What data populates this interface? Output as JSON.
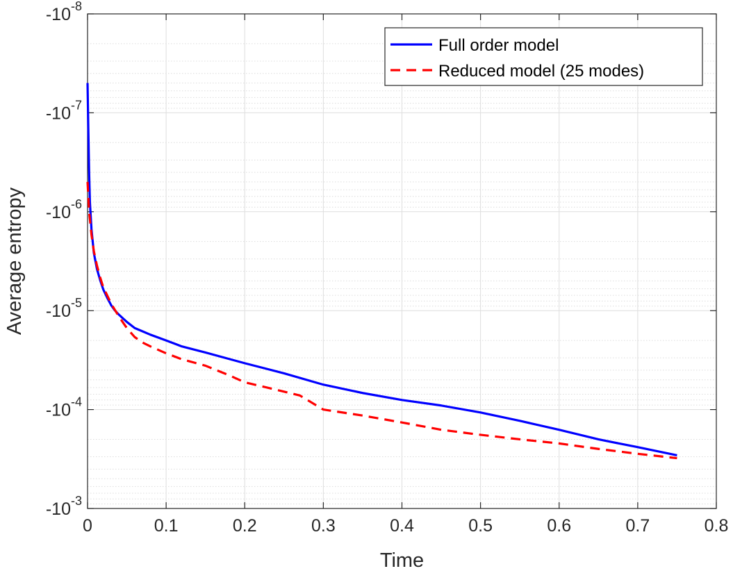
{
  "chart_data": {
    "type": "line",
    "title": "",
    "xlabel": "Time",
    "ylabel": "Average entropy",
    "xlim": [
      0,
      0.8
    ],
    "x_ticks": [
      0,
      0.1,
      0.2,
      0.3,
      0.4,
      0.5,
      0.6,
      0.7,
      0.8
    ],
    "x_tick_labels": [
      "0",
      "0.1",
      "0.2",
      "0.3",
      "0.4",
      "0.5",
      "0.6",
      "0.7",
      "0.8"
    ],
    "y_scale": "log (negated values, magnitude increasing downward)",
    "ylim": [
      -0.001,
      -1e-08
    ],
    "y_ticks": [
      -1e-08,
      -1e-07,
      -1e-06,
      -1e-05,
      -0.0001,
      -0.001
    ],
    "y_tick_labels": [
      {
        "base": "-10",
        "exp": "-8"
      },
      {
        "base": "-10",
        "exp": "-7"
      },
      {
        "base": "-10",
        "exp": "-6"
      },
      {
        "base": "-10",
        "exp": "-5"
      },
      {
        "base": "-10",
        "exp": "-4"
      },
      {
        "base": "-10",
        "exp": "-3"
      }
    ],
    "grid": true,
    "minor_grid": true,
    "legend_position": "top-right",
    "series": [
      {
        "name": "Full order model",
        "color": "#0000ff",
        "style": "solid",
        "x": [
          0,
          0.001,
          0.002,
          0.003,
          0.005,
          0.008,
          0.012,
          0.016,
          0.02,
          0.025,
          0.03,
          0.035,
          0.04,
          0.05,
          0.06,
          0.07,
          0.08,
          0.1,
          0.12,
          0.15,
          0.2,
          0.25,
          0.3,
          0.35,
          0.4,
          0.45,
          0.5,
          0.55,
          0.6,
          0.65,
          0.7,
          0.75
        ],
        "y": [
          -5e-08,
          -1.5e-07,
          -4e-07,
          -8e-07,
          -1.5e-06,
          -2.6e-06,
          -3.8e-06,
          -4.9e-06,
          -6.1e-06,
          -7.4e-06,
          -8.8e-06,
          -1e-05,
          -1.1e-05,
          -1.3e-05,
          -1.5e-05,
          -1.62e-05,
          -1.75e-05,
          -2e-05,
          -2.3e-05,
          -2.65e-05,
          -3.4e-05,
          -4.3e-05,
          -5.6e-05,
          -6.8e-05,
          -8e-05,
          -9.1e-05,
          -0.000107,
          -0.00013,
          -0.00016,
          -0.0002,
          -0.00024,
          -0.00029
        ]
      },
      {
        "name": "Reduced model (25 modes)",
        "color": "#ff0000",
        "style": "dashed",
        "x": [
          0,
          0.002,
          0.005,
          0.008,
          0.012,
          0.016,
          0.02,
          0.025,
          0.03,
          0.04,
          0.05,
          0.06,
          0.07,
          0.08,
          0.1,
          0.12,
          0.15,
          0.18,
          0.2,
          0.24,
          0.27,
          0.3,
          0.35,
          0.4,
          0.45,
          0.5,
          0.55,
          0.6,
          0.65,
          0.7,
          0.75
        ],
        "y": [
          -5e-07,
          -1e-06,
          -1.7e-06,
          -2.5e-06,
          -3.5e-06,
          -4.6e-06,
          -5.8e-06,
          -7e-06,
          -8.5e-06,
          -1.15e-05,
          -1.5e-05,
          -1.85e-05,
          -2.1e-05,
          -2.3e-05,
          -2.7e-05,
          -3.1e-05,
          -3.6e-05,
          -4.5e-05,
          -5.3e-05,
          -6.3e-05,
          -7.2e-05,
          -0.0001,
          -0.000115,
          -0.000135,
          -0.00016,
          -0.00018,
          -0.0002,
          -0.00022,
          -0.00025,
          -0.00028,
          -0.00031
        ]
      }
    ]
  }
}
